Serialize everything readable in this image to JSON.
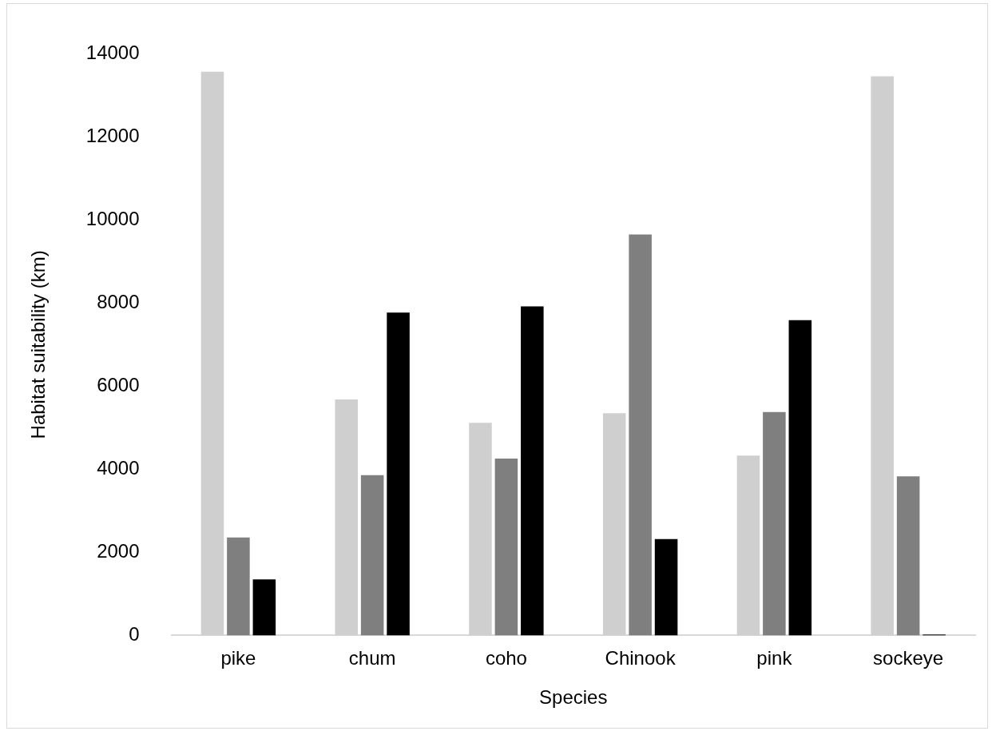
{
  "chart_data": {
    "type": "bar",
    "xlabel": "Species",
    "ylabel": "Habitat suitability (km)",
    "categories": [
      "pike",
      "chum",
      "coho",
      "Chinook",
      "pink",
      "sockeye"
    ],
    "series": [
      {
        "color": "#d0cfd0",
        "values": [
          13570,
          5680,
          5120,
          5350,
          4330,
          13460
        ]
      },
      {
        "color": "#7f7f7f",
        "values": [
          2360,
          3860,
          4260,
          9650,
          5380,
          3830
        ]
      },
      {
        "color": "#000000",
        "values": [
          1350,
          7770,
          7920,
          2320,
          7590,
          20
        ]
      }
    ],
    "ylim": [
      0,
      14000
    ],
    "yticks": [
      0,
      2000,
      4000,
      6000,
      8000,
      10000,
      12000,
      14000
    ],
    "grid": false,
    "legend": false
  }
}
